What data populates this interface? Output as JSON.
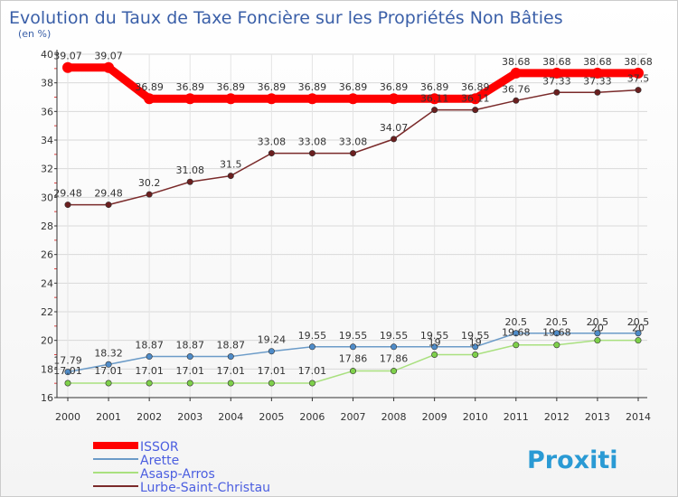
{
  "chart_data": {
    "type": "line",
    "title": "Evolution du Taux de Taxe Foncière sur les Propriétés Non Bâties",
    "subtitle": "(en %)",
    "xlabel": "",
    "ylabel": "",
    "categories": [
      "2000",
      "2001",
      "2002",
      "2003",
      "2004",
      "2005",
      "2006",
      "2007",
      "2008",
      "2009",
      "2010",
      "2011",
      "2012",
      "2013",
      "2014"
    ],
    "ylim": [
      16,
      40
    ],
    "yticks": [
      "16",
      "18",
      "20",
      "22",
      "24",
      "26",
      "28",
      "30",
      "32",
      "34",
      "36",
      "38",
      "40"
    ],
    "legend_position": "bottom-left",
    "series": [
      {
        "name": "ISSOR",
        "color": "#ff0000",
        "thick": true,
        "values": [
          39.07,
          39.07,
          36.89,
          36.89,
          36.89,
          36.89,
          36.89,
          36.89,
          36.89,
          36.89,
          36.89,
          38.68,
          38.68,
          38.68,
          38.68
        ],
        "labels": [
          "39.07",
          "39.07",
          "36.89",
          "36.89",
          "36.89",
          "36.89",
          "36.89",
          "36.89",
          "36.89",
          "36.89",
          "36.89",
          "38.68",
          "38.68",
          "38.68",
          "38.68"
        ]
      },
      {
        "name": "Arette",
        "color": "#6b9bc8",
        "marker": "#4f8cc9",
        "values": [
          17.79,
          18.32,
          18.87,
          18.87,
          18.87,
          19.24,
          19.55,
          19.55,
          19.55,
          19.55,
          19.55,
          20.5,
          20.5,
          20.5,
          20.5
        ],
        "labels": [
          "17.79",
          "18.32",
          "18.87",
          "18.87",
          "18.87",
          "19.24",
          "19.55",
          "19.55",
          "19.55",
          "19.55",
          "19.55",
          "20.5",
          "20.5",
          "20.5",
          "20.5"
        ]
      },
      {
        "name": "Asasp-Arros",
        "color": "#a9e07f",
        "marker": "#7ed04a",
        "values": [
          17.01,
          17.01,
          17.01,
          17.01,
          17.01,
          17.01,
          17.01,
          17.86,
          17.86,
          19,
          19,
          19.68,
          19.68,
          20,
          20
        ],
        "labels": [
          "17.01",
          "17.01",
          "17.01",
          "17.01",
          "17.01",
          "17.01",
          "17.01",
          "17.86",
          "17.86",
          "19",
          "19",
          "19.68",
          "19.68",
          "20",
          "20"
        ]
      },
      {
        "name": "Lurbe-Saint-Christau",
        "color": "#7a2a2a",
        "marker": "#6b1f1f",
        "values": [
          29.48,
          29.48,
          30.2,
          31.08,
          31.5,
          33.08,
          33.08,
          33.08,
          34.07,
          36.11,
          36.11,
          36.76,
          37.33,
          37.33,
          37.5
        ],
        "labels": [
          "29.48",
          "29.48",
          "30.2",
          "31.08",
          "31.5",
          "33.08",
          "33.08",
          "33.08",
          "34.07",
          "36.11",
          "36.11",
          "36.76",
          "37.33",
          "37.33",
          "37.5"
        ]
      }
    ]
  },
  "legend": {
    "items": [
      "ISSOR",
      "Arette",
      "Asasp-Arros",
      "Lurbe-Saint-Christau"
    ]
  },
  "logo": {
    "text": "Proxiti"
  }
}
